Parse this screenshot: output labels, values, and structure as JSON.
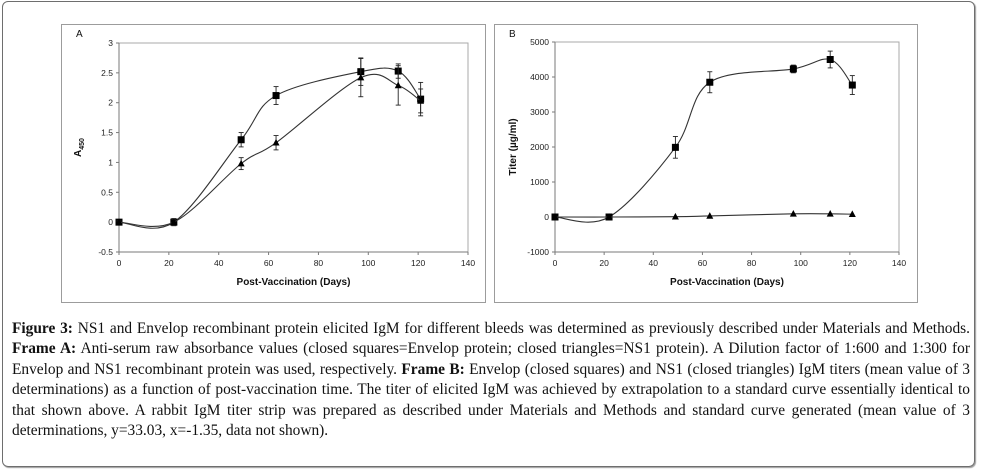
{
  "chart_data": [
    {
      "type": "line",
      "panel_label": "A",
      "xlabel": "Post-Vaccination (Days)",
      "ylabel_main": "A",
      "ylabel_sub": "450",
      "xlim": [
        0,
        140
      ],
      "ylim": [
        -0.5,
        3
      ],
      "xticks": [
        0,
        20,
        40,
        60,
        80,
        100,
        120,
        140
      ],
      "yticks": [
        -0.5,
        0,
        0.5,
        1,
        1.5,
        2,
        2.5,
        3
      ],
      "ytick_labels": [
        "-0.5",
        "0",
        "0.5",
        "1",
        "1.5",
        "2",
        "2.5",
        "3"
      ],
      "grid": false,
      "series": [
        {
          "name": "Envelop protein",
          "marker": "square",
          "x": [
            0,
            22,
            49,
            63,
            97,
            112,
            121
          ],
          "y": [
            0,
            0,
            1.38,
            2.12,
            2.52,
            2.53,
            2.06
          ],
          "err": [
            0.02,
            0.06,
            0.12,
            0.15,
            0.23,
            0.12,
            0.28
          ]
        },
        {
          "name": "NS1 protein",
          "marker": "triangle",
          "x": [
            0,
            22,
            49,
            63,
            97,
            112,
            121
          ],
          "y": [
            0,
            0,
            0.98,
            1.33,
            2.42,
            2.29,
            2.03
          ],
          "err": [
            0.02,
            0.05,
            0.1,
            0.12,
            0.32,
            0.33,
            0.2
          ]
        }
      ]
    },
    {
      "type": "line",
      "panel_label": "B",
      "xlabel": "Post-Vaccination (Days)",
      "ylabel": "Titer (µg/ml)",
      "xlim": [
        0,
        140
      ],
      "ylim": [
        -1000,
        5000
      ],
      "xticks": [
        0,
        20,
        40,
        60,
        80,
        100,
        120,
        140
      ],
      "yticks": [
        -1000,
        0,
        1000,
        2000,
        3000,
        4000,
        5000
      ],
      "ytick_labels": [
        "-1000",
        "0",
        "1000",
        "2000",
        "3000",
        "4000",
        "5000"
      ],
      "grid": false,
      "series": [
        {
          "name": "Envelop",
          "marker": "square",
          "x": [
            0,
            22,
            49,
            63,
            97,
            112,
            121
          ],
          "y": [
            0,
            0,
            1990,
            3850,
            4230,
            4500,
            3770
          ],
          "err": [
            20,
            50,
            310,
            300,
            110,
            240,
            270
          ]
        },
        {
          "name": "NS1",
          "marker": "triangle",
          "x": [
            0,
            22,
            49,
            63,
            97,
            112,
            121
          ],
          "y": [
            0,
            0,
            10,
            30,
            90,
            90,
            80
          ],
          "err": [
            0,
            0,
            0,
            0,
            0,
            0,
            0
          ]
        }
      ]
    }
  ],
  "caption": {
    "figure_label": "Figure 3:",
    "intro": " NS1 and Envelop recombinant protein elicited IgM for different bleeds was determined as previously described under Materials and Methods. ",
    "frame_a_label": "Frame A:",
    "frame_a_text": " Anti-serum raw absorbance values (closed squares=Envelop protein; closed triangles=NS1 protein). A Dilution factor of 1:600 and 1:300 for Envelop and NS1 recombinant protein was used, respectively. ",
    "frame_b_label": "Frame B:",
    "frame_b_text": " Envelop (closed squares) and NS1 (closed triangles) IgM titers (mean value of 3 determinations) as a function of post-vaccination time. The titer of elicited IgM was achieved by extrapolation to a standard curve essentially identical to that shown above. A rabbit IgM titer strip was prepared as described under Materials and Methods and standard curve generated (mean value of 3 determinations, y=33.03, x=-1.35, data not shown)."
  }
}
